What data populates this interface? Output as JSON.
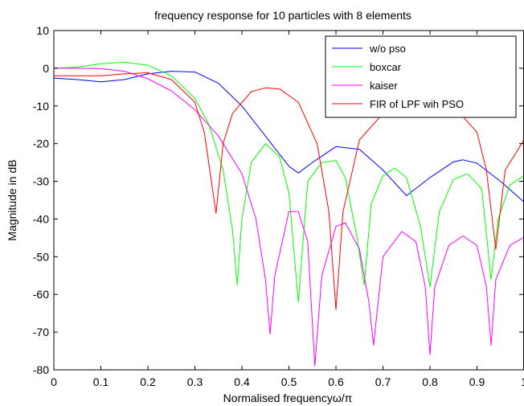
{
  "chart_data": {
    "type": "line",
    "title": "frequency response for 10 particles with 8 elements",
    "xlabel": "Normalised frequencyω/π",
    "ylabel": "Magnitude in dB",
    "xlim": [
      0,
      1
    ],
    "ylim": [
      -80,
      10
    ],
    "grid": false,
    "legend_position": "top-right",
    "x_ticks": [
      "0",
      "0.1",
      "0.2",
      "0.3",
      "0.4",
      "0.5",
      "0.6",
      "0.7",
      "0.8",
      "0.9",
      "1"
    ],
    "y_ticks": [
      "10",
      "0",
      "-10",
      "-20",
      "-30",
      "-40",
      "-50",
      "-60",
      "-70",
      "-80"
    ],
    "series": [
      {
        "name": "w/o pso",
        "color": "#0000ff",
        "x": [
          0,
          0.05,
          0.1,
          0.15,
          0.2,
          0.25,
          0.3,
          0.35,
          0.4,
          0.45,
          0.5,
          0.52,
          0.55,
          0.6,
          0.65,
          0.7,
          0.75,
          0.8,
          0.85,
          0.87,
          0.9,
          0.95,
          1.0
        ],
        "y": [
          -2.6,
          -3.0,
          -3.6,
          -3.0,
          -1.5,
          -0.8,
          -1.0,
          -4.0,
          -10.0,
          -18.0,
          -26.0,
          -27.8,
          -25.0,
          -20.8,
          -21.5,
          -27.0,
          -33.8,
          -29.0,
          -24.8,
          -24.3,
          -25.2,
          -30.0,
          -35.5
        ]
      },
      {
        "name": "boxcar",
        "color": "#00ff00",
        "x": [
          0,
          0.05,
          0.1,
          0.15,
          0.2,
          0.25,
          0.3,
          0.33,
          0.36,
          0.38,
          0.39,
          0.4,
          0.42,
          0.45,
          0.48,
          0.5,
          0.52,
          0.54,
          0.57,
          0.6,
          0.62,
          0.645,
          0.66,
          0.675,
          0.7,
          0.725,
          0.75,
          0.78,
          0.8,
          0.82,
          0.85,
          0.88,
          0.91,
          0.93,
          0.945,
          0.97,
          1.0
        ],
        "y": [
          0.0,
          0.3,
          1.2,
          1.6,
          0.8,
          -2.0,
          -8.0,
          -15.0,
          -27.0,
          -43.0,
          -57.5,
          -40.0,
          -25.0,
          -20.0,
          -23.5,
          -33.0,
          -62.0,
          -30.0,
          -25.0,
          -24.5,
          -29.0,
          -45.0,
          -57.5,
          -36.0,
          -28.5,
          -26.5,
          -29.0,
          -42.0,
          -58.0,
          -38.0,
          -29.5,
          -28.0,
          -32.0,
          -56.0,
          -40.0,
          -31.0,
          -28.5
        ]
      },
      {
        "name": "kaiser",
        "color": "#ff00ff",
        "x": [
          0,
          0.05,
          0.1,
          0.15,
          0.2,
          0.25,
          0.3,
          0.35,
          0.4,
          0.43,
          0.45,
          0.46,
          0.47,
          0.5,
          0.52,
          0.54,
          0.555,
          0.57,
          0.6,
          0.62,
          0.65,
          0.67,
          0.68,
          0.7,
          0.74,
          0.77,
          0.79,
          0.8,
          0.81,
          0.84,
          0.87,
          0.9,
          0.92,
          0.93,
          0.94,
          0.97,
          1.0
        ],
        "y": [
          0.0,
          0.0,
          -0.1,
          -0.8,
          -2.8,
          -6.0,
          -11.0,
          -18.0,
          -28.0,
          -40.0,
          -56.0,
          -70.5,
          -55.0,
          -38.0,
          -38.0,
          -46.0,
          -79.0,
          -55.0,
          -42.0,
          -41.0,
          -48.0,
          -62.0,
          -73.5,
          -50.0,
          -43.3,
          -46.0,
          -58.0,
          -76.0,
          -58.0,
          -47.0,
          -44.5,
          -47.0,
          -58.0,
          -73.5,
          -56.0,
          -47.0,
          -44.8
        ]
      },
      {
        "name": "FIR of LPF wih PSO",
        "color": "#ff0000",
        "x": [
          0,
          0.05,
          0.1,
          0.15,
          0.2,
          0.25,
          0.3,
          0.32,
          0.345,
          0.36,
          0.38,
          0.42,
          0.45,
          0.48,
          0.52,
          0.56,
          0.585,
          0.6,
          0.615,
          0.65,
          0.7,
          0.75,
          0.8,
          0.85,
          0.9,
          0.92,
          0.94,
          0.96,
          1.0
        ],
        "y": [
          -2.0,
          -2.0,
          -2.0,
          -1.5,
          -1.2,
          -3.0,
          -9.0,
          -17.0,
          -38.5,
          -20.0,
          -12.0,
          -6.2,
          -5.2,
          -5.5,
          -9.0,
          -20.0,
          -38.0,
          -64.0,
          -38.0,
          -19.0,
          -12.0,
          -9.0,
          -9.0,
          -10.0,
          -17.0,
          -27.0,
          -48.0,
          -27.0,
          -19.0
        ]
      }
    ]
  }
}
